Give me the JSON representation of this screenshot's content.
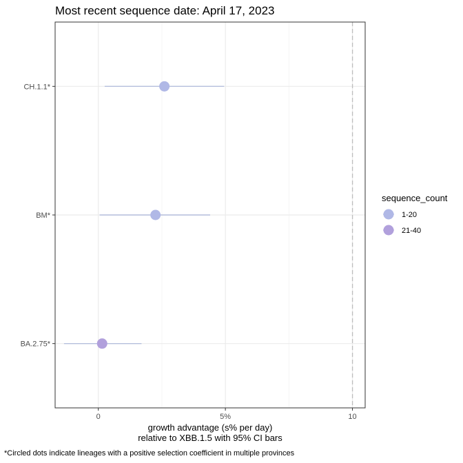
{
  "chart_data": {
    "type": "scatter",
    "title": "Most recent sequence date: April 17, 2023",
    "xlabel_line1": "growth advantage (s% per day)",
    "xlabel_line2": "relative to  XBB.1.5  with 95% CI bars",
    "caption": "*Circled dots indicate lineages with a positive selection coefficient in multiple provinces",
    "xlim": [
      -1.7,
      10.5
    ],
    "x_ticks": [
      0,
      5,
      10
    ],
    "x_tick_labels": [
      "0",
      "5%",
      "10"
    ],
    "reference_line_x": 10,
    "grid": true,
    "legend_position": "right",
    "legend": {
      "title": "sequence_count",
      "entries": [
        {
          "label": "1-20",
          "color": "#b0b8e6"
        },
        {
          "label": "21-40",
          "color": "#b1a0dc"
        }
      ]
    },
    "categories": [
      "CH.1.1*",
      "BM*",
      "BA.2.75*"
    ],
    "points": [
      {
        "lineage": "CH.1.1*",
        "estimate": 2.6,
        "ci_low": 0.25,
        "ci_high": 4.95,
        "group": "1-20"
      },
      {
        "lineage": "BM*",
        "estimate": 2.25,
        "ci_low": 0.05,
        "ci_high": 4.4,
        "group": "1-20"
      },
      {
        "lineage": "BA.2.75*",
        "estimate": 0.15,
        "ci_low": -1.35,
        "ci_high": 1.7,
        "group": "21-40"
      }
    ],
    "colors": {
      "ci_line": "#b4bedc",
      "panel_border": "#333333",
      "grid_major": "#ebebeb",
      "grid_minor": "#f5f5f5",
      "reference_line": "#bdbdbd"
    }
  }
}
